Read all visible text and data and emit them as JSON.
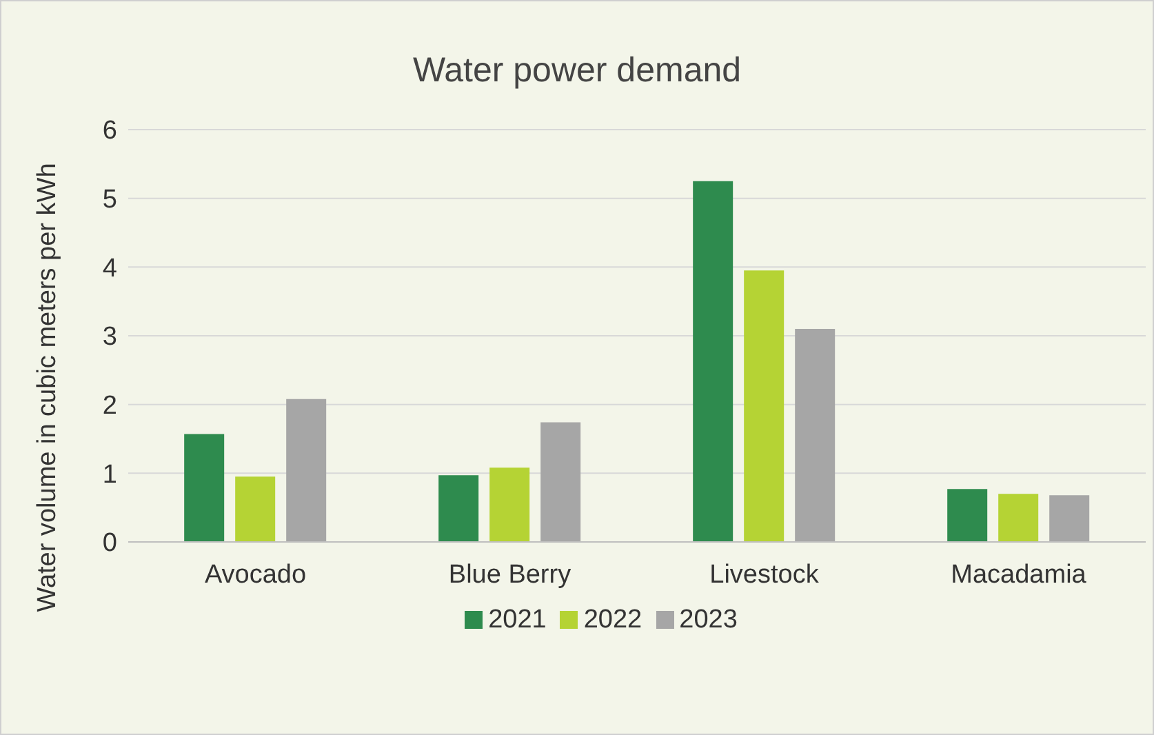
{
  "chart_data": {
    "type": "bar",
    "title": "Water power demand",
    "ylabel": "Water volume in cubic meters per kWh",
    "categories": [
      "Avocado",
      "Blue Berry",
      "Livestock",
      "Macadamia"
    ],
    "series": [
      {
        "name": "2021",
        "color": "#2e8b4e",
        "values": [
          1.57,
          0.97,
          5.25,
          0.77
        ]
      },
      {
        "name": "2022",
        "color": "#b5d334",
        "values": [
          0.95,
          1.08,
          3.95,
          0.7
        ]
      },
      {
        "name": "2023",
        "color": "#a6a6a6",
        "values": [
          2.08,
          1.74,
          3.1,
          0.68
        ]
      }
    ],
    "ylim": [
      0,
      6
    ],
    "yticks": [
      0,
      1,
      2,
      3,
      4,
      5,
      6
    ],
    "grid": "y",
    "legend": "bottom"
  }
}
